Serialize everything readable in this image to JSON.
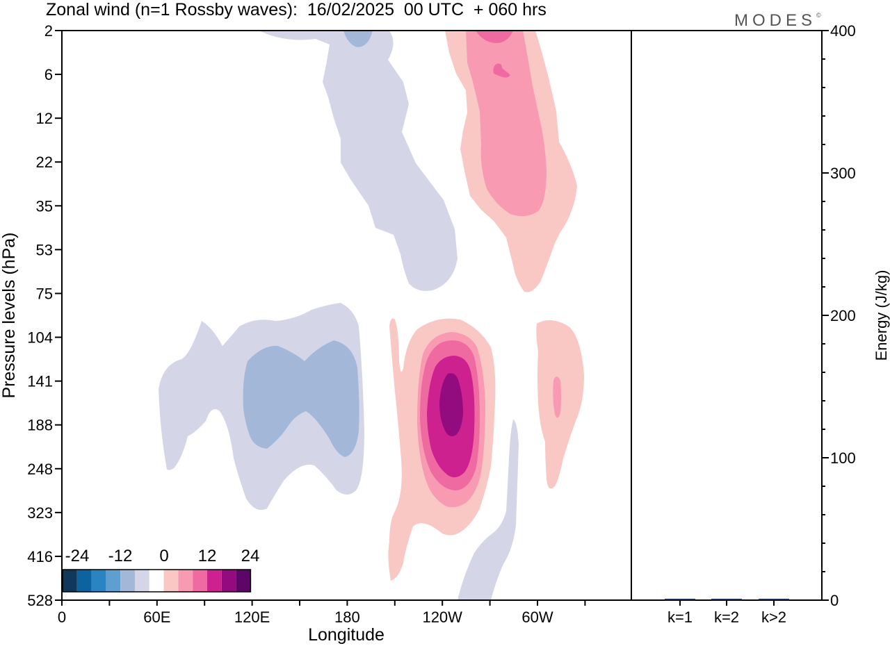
{
  "title": "Zonal wind (n=1 Rossby waves):  16/02/2025  00 UTC  + 060 hrs",
  "brand": "MODES",
  "brand_mark": "©",
  "colors": {
    "neg": [
      "#11385a",
      "#0d63a0",
      "#2a84c2",
      "#5e9fcf",
      "#a3b8d9",
      "#d4d6e8"
    ],
    "pos": [
      "#fac8c4",
      "#f79ab2",
      "#f06aa2",
      "#cd2190",
      "#920c7f",
      "#5c0768"
    ]
  },
  "chart_data": [
    {
      "type": "contour",
      "xlabel": "Longitude",
      "ylabel": "Pressure levels (hPa)",
      "x_ticks": [
        "0",
        "60E",
        "120E",
        "180",
        "120W",
        "60W"
      ],
      "y_ticks": [
        "2",
        "6",
        "12",
        "22",
        "35",
        "53",
        "75",
        "104",
        "141",
        "188",
        "248",
        "323",
        "416",
        "528"
      ],
      "colorbar": {
        "labels": [
          "-24",
          "-12",
          "0",
          "12",
          "24"
        ],
        "levels": [
          -24,
          -20,
          -16,
          -12,
          -8,
          -4,
          4,
          8,
          12,
          16,
          20,
          24
        ]
      },
      "regions": [
        {
          "name": "upper negative band",
          "level": -4,
          "lon_range": [
            "180",
            "100W"
          ],
          "pressure_range": [
            2,
            75
          ]
        },
        {
          "name": "upper negative core",
          "level": -8,
          "lon": "~178W",
          "pressure": 2
        },
        {
          "name": "upper positive band",
          "level": 4,
          "lon_range": [
            "135W",
            "65W"
          ],
          "pressure_range": [
            2,
            75
          ]
        },
        {
          "name": "upper positive core",
          "level": 8,
          "lon_range": [
            "130W",
            "80W"
          ],
          "pressure_range": [
            2,
            35
          ]
        },
        {
          "name": "upper positive max",
          "level": 12,
          "lon": "~110W",
          "pressure": 6
        },
        {
          "name": "lower negative region",
          "level": -4,
          "lon_range": [
            "60E",
            "175W"
          ],
          "pressure_range": [
            88,
            330
          ]
        },
        {
          "name": "lower negative core",
          "level": -8,
          "lon_range": [
            "125E",
            "170W"
          ],
          "pressure_range": [
            104,
            230
          ]
        },
        {
          "name": "lower negative tail",
          "level": -4,
          "lon_range": [
            "135W",
            "100W"
          ],
          "pressure_range": [
            188,
            528
          ]
        },
        {
          "name": "positive dipole",
          "level": 4,
          "lon_range": [
            "155W",
            "100W"
          ],
          "pressure_range": [
            95,
            480
          ]
        },
        {
          "name": "positive dipole core",
          "level": 8,
          "lon_range": [
            "145W",
            "105W"
          ],
          "pressure_range": [
            100,
            330
          ]
        },
        {
          "name": "positive dipole level 12",
          "level": 12,
          "lon_range": [
            "140W",
            "115W"
          ],
          "pressure_range": [
            110,
            300
          ]
        },
        {
          "name": "positive dipole level 16",
          "level": 16,
          "lon_range": [
            "136W",
            "118W"
          ],
          "pressure_range": [
            115,
            250
          ]
        },
        {
          "name": "positive dipole max",
          "level": 20,
          "lon": "~127W",
          "pressure": 165
        },
        {
          "name": "eastern positive cell",
          "level": 4,
          "lon_range": [
            "70W",
            "40W"
          ],
          "pressure_range": [
            100,
            300
          ]
        },
        {
          "name": "eastern positive core",
          "level": 8,
          "lon": "~60W",
          "pressure": 150
        }
      ]
    },
    {
      "type": "bar",
      "ylabel": "Energy (J/kg)",
      "categories": [
        "k=1",
        "k=2",
        "k>2"
      ],
      "values": [
        0.5,
        0.3,
        0.5
      ],
      "ylim": [
        0,
        400
      ],
      "y_ticks": [
        0,
        100,
        200,
        300,
        400
      ]
    }
  ]
}
